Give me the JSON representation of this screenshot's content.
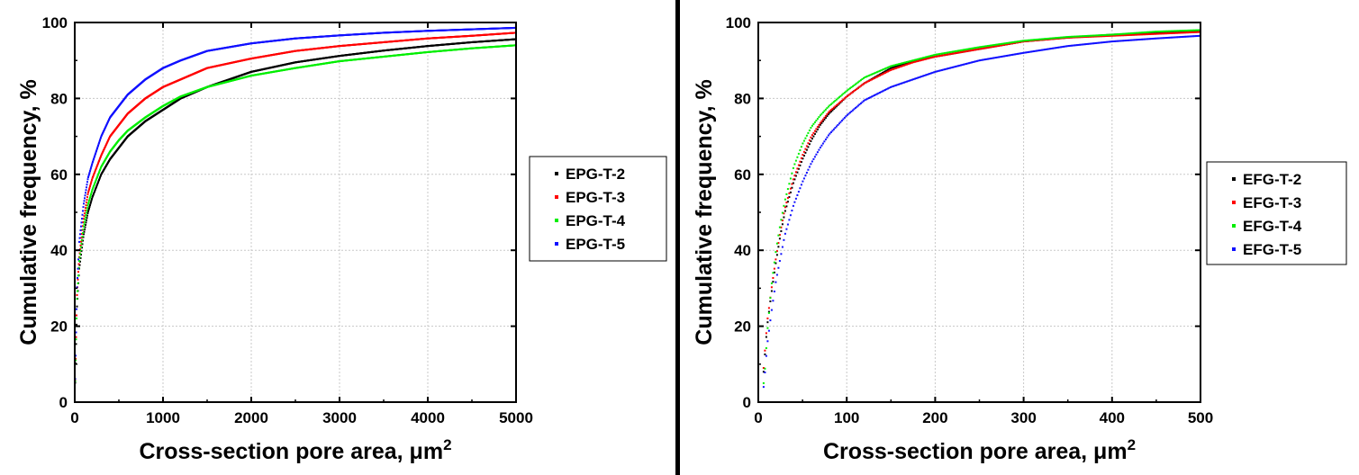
{
  "chart_data": [
    {
      "type": "scatter",
      "xlabel": "Cross-section pore area, μm",
      "xlabel_sup": "2",
      "ylabel": "Cumulative frequency, %",
      "xlim": [
        0,
        5000
      ],
      "ylim": [
        0,
        100
      ],
      "xticks": [
        0,
        1000,
        2000,
        3000,
        4000,
        5000
      ],
      "yticks": [
        0,
        20,
        40,
        60,
        80,
        100
      ],
      "x_tick_labels": [
        "0",
        "1000",
        "2000",
        "3000",
        "4000",
        "5000"
      ],
      "y_tick_labels": [
        "0",
        "20",
        "40",
        "60",
        "80",
        "100"
      ],
      "grid": true,
      "legend_position": "right",
      "series": [
        {
          "name": "EPG-T-2",
          "color": "#000000",
          "x": [
            0,
            25,
            50,
            100,
            150,
            200,
            300,
            400,
            500,
            600,
            800,
            1000,
            1200,
            1500,
            2000,
            2500,
            3000,
            3500,
            4000,
            4500,
            5000
          ],
          "y": [
            0,
            25,
            35,
            44,
            50,
            54,
            60,
            64,
            67,
            70,
            74,
            77,
            80,
            83,
            87,
            89.5,
            91.2,
            92.6,
            93.8,
            94.8,
            95.6
          ]
        },
        {
          "name": "EPG-T-3",
          "color": "#ff0000",
          "x": [
            0,
            25,
            50,
            100,
            150,
            200,
            300,
            400,
            500,
            600,
            800,
            1000,
            1200,
            1500,
            2000,
            2500,
            3000,
            3500,
            4000,
            4500,
            5000
          ],
          "y": [
            0,
            28,
            38,
            48,
            55,
            59,
            65,
            70,
            73,
            76,
            80,
            83,
            85,
            88,
            90.5,
            92.5,
            93.8,
            94.8,
            95.8,
            96.5,
            97.3
          ]
        },
        {
          "name": "EPG-T-4",
          "color": "#00ee00",
          "x": [
            0,
            25,
            50,
            100,
            150,
            200,
            300,
            400,
            500,
            600,
            800,
            1000,
            1200,
            1500,
            2000,
            2500,
            3000,
            3500,
            4000,
            4500,
            5000
          ],
          "y": [
            0,
            27,
            37,
            46,
            52,
            56,
            62,
            66,
            69,
            71.5,
            75,
            78,
            80.5,
            83,
            86,
            88,
            89.8,
            91,
            92.2,
            93.2,
            94
          ]
        },
        {
          "name": "EPG-T-5",
          "color": "#1010ff",
          "x": [
            0,
            25,
            50,
            100,
            150,
            200,
            300,
            400,
            500,
            600,
            800,
            1000,
            1200,
            1500,
            2000,
            2500,
            3000,
            3500,
            4000,
            4500,
            5000
          ],
          "y": [
            0,
            30,
            42,
            52,
            59,
            63,
            70,
            75,
            78,
            81,
            85,
            88,
            90,
            92.5,
            94.5,
            95.8,
            96.6,
            97.3,
            97.8,
            98.2,
            98.6
          ]
        }
      ]
    },
    {
      "type": "scatter",
      "xlabel": "Cross-section pore area, μm",
      "xlabel_sup": "2",
      "ylabel": "Cumulative frequency, %",
      "xlim": [
        0,
        500
      ],
      "ylim": [
        0,
        100
      ],
      "xticks": [
        0,
        100,
        200,
        300,
        400,
        500
      ],
      "yticks": [
        0,
        20,
        40,
        60,
        80,
        100
      ],
      "x_tick_labels": [
        "0",
        "100",
        "200",
        "300",
        "400",
        "500"
      ],
      "y_tick_labels": [
        "0",
        "20",
        "40",
        "60",
        "80",
        "100"
      ],
      "grid": true,
      "legend_position": "right",
      "series": [
        {
          "name": "EFG-T-2",
          "color": "#000000",
          "x": [
            6,
            8,
            10,
            15,
            20,
            25,
            30,
            40,
            50,
            60,
            70,
            80,
            100,
            120,
            150,
            175,
            200,
            250,
            300,
            350,
            400,
            450,
            500
          ],
          "y": [
            8,
            14,
            20,
            29,
            37,
            44,
            50,
            58,
            64,
            69,
            73,
            76,
            80.5,
            84,
            88,
            89.8,
            91,
            93,
            95,
            96,
            96.8,
            97.2,
            97.6
          ]
        },
        {
          "name": "EFG-T-3",
          "color": "#ff0000",
          "x": [
            6,
            8,
            10,
            15,
            20,
            25,
            30,
            40,
            50,
            60,
            70,
            80,
            100,
            120,
            150,
            175,
            200,
            250,
            300,
            350,
            400,
            450,
            500
          ],
          "y": [
            9,
            15,
            21,
            30,
            38,
            45,
            51,
            59,
            65,
            70,
            73.5,
            76.5,
            80.5,
            84,
            87.5,
            89.5,
            91,
            93,
            95,
            96,
            96.5,
            97,
            97.5
          ]
        },
        {
          "name": "EFG-T-4",
          "color": "#00ee00",
          "x": [
            6,
            8,
            10,
            15,
            20,
            25,
            30,
            40,
            50,
            60,
            70,
            80,
            100,
            120,
            150,
            175,
            200,
            250,
            300,
            350,
            400,
            450,
            500
          ],
          "y": [
            5,
            10,
            18,
            31,
            40,
            47,
            53,
            62,
            68,
            72.5,
            75.5,
            78,
            82,
            85.5,
            88.5,
            90,
            91.5,
            93.5,
            95.2,
            96.2,
            96.8,
            97.6,
            98
          ]
        },
        {
          "name": "EFG-T-5",
          "color": "#1010ff",
          "x": [
            6,
            8,
            10,
            15,
            20,
            25,
            30,
            40,
            50,
            60,
            70,
            80,
            100,
            120,
            150,
            175,
            200,
            250,
            300,
            350,
            400,
            450,
            500
          ],
          "y": [
            4,
            9,
            15,
            24,
            32,
            38,
            44,
            52,
            58,
            63,
            67,
            70.5,
            75.5,
            79.5,
            83,
            85,
            87,
            90,
            92,
            93.8,
            95,
            95.8,
            96.5
          ]
        }
      ]
    }
  ]
}
